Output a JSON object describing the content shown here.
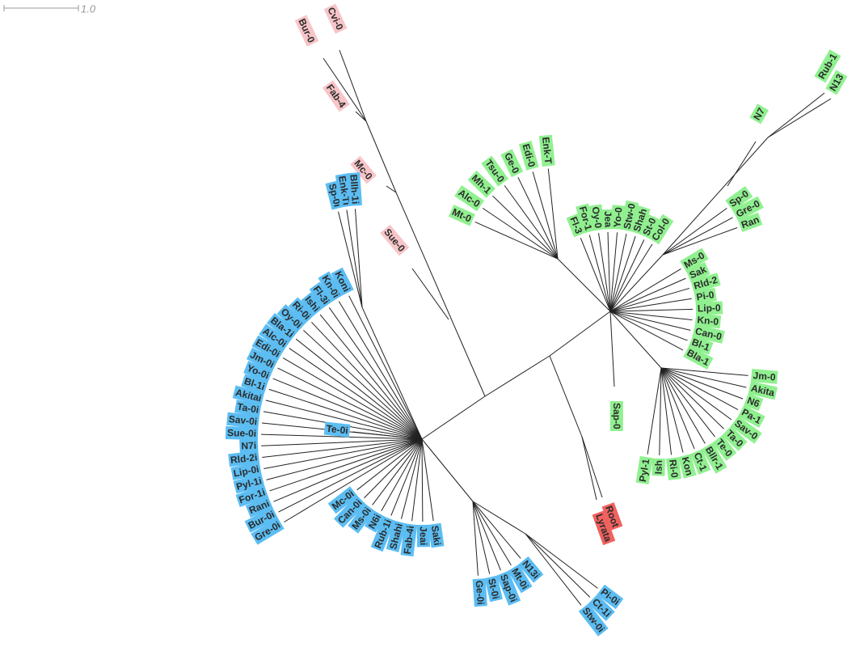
{
  "scale_label": "1.0",
  "clades": [
    {
      "color": "#f7c5c8",
      "leaves": [
        "Bur-0",
        "Cvi-0",
        "Fab-4",
        "Mc-0",
        "Sue-0"
      ]
    },
    {
      "color": "#5cbdf2",
      "leaves": [
        "Sp-0i",
        "Enk-Ti",
        "Bllh-1i"
      ]
    },
    {
      "color": "#5cbdf2",
      "leaves": [
        "Koni",
        "Kn-0i",
        "Fl-3i",
        "Ishi",
        "Ri-0i",
        "Oy-0i",
        "Bla-1i",
        "Alc-0i",
        "Edi-0i",
        "Jm-0i",
        "Yo-0i",
        "Bl-1i",
        "Akitai",
        "Ta-0i",
        "Sav-0i",
        "Sue-0i",
        "N7i",
        "Rld-2i",
        "Lip-0i",
        "Pyl-1i",
        "For-1i",
        "Rani",
        "Bur-0i",
        "Gre-0i"
      ]
    },
    {
      "color": "#5cbdf2",
      "leaves": [
        "Mc-0i",
        "Can-0i",
        "Ms-0i",
        "N6i",
        "Rub-1i",
        "Shahi",
        "Fab-4i",
        "Jeai",
        "Saki"
      ]
    },
    {
      "color": "#5cbdf2",
      "leaves": [
        "Te-0i"
      ]
    },
    {
      "color": "#5cbdf2",
      "leaves": [
        "Ge-0i",
        "St-0i",
        "Sap-0i",
        "Mt-0i",
        "N13i"
      ]
    },
    {
      "color": "#5cbdf2",
      "leaves": [
        "Pi-0i",
        "Ct-1i",
        "Stw-0i"
      ]
    },
    {
      "color": "#90f090",
      "leaves": [
        "Mt-0",
        "Alc-0",
        "Mh-1",
        "Tsu-0",
        "Ge-0",
        "Edi-0",
        "Enk-T"
      ]
    },
    {
      "color": "#90f090",
      "leaves": [
        "Fl-3",
        "For-1",
        "Oy-0",
        "Jea",
        "Yo-0",
        "Stw-0",
        "Shah",
        "St-0",
        "Col-0"
      ]
    },
    {
      "color": "#90f090",
      "leaves": [
        "Ms-0",
        "Sak",
        "Rld-2",
        "Pi-0",
        "Lip-0",
        "Kn-0",
        "Can-0",
        "Bl-1",
        "Bla-1"
      ]
    },
    {
      "color": "#90f090",
      "leaves": [
        "Sp-0",
        "Gre-0",
        "Ran"
      ]
    },
    {
      "color": "#90f090",
      "leaves": [
        "N7",
        "Rub-1",
        "N13"
      ]
    },
    {
      "color": "#90f090",
      "leaves": [
        "Jm-0",
        "Akita",
        "N6",
        "Pa-1",
        "Sav-0",
        "Ta-0",
        "Te-0",
        "Bllr-1",
        "Ct-1",
        "Kon",
        "Ri-0",
        "Ish",
        "Pyl-1"
      ]
    },
    {
      "color": "#90f090",
      "leaves": [
        "Sap-0"
      ]
    },
    {
      "color": "#f0625f",
      "leaves": [
        "Root",
        "Lyrata"
      ]
    }
  ]
}
